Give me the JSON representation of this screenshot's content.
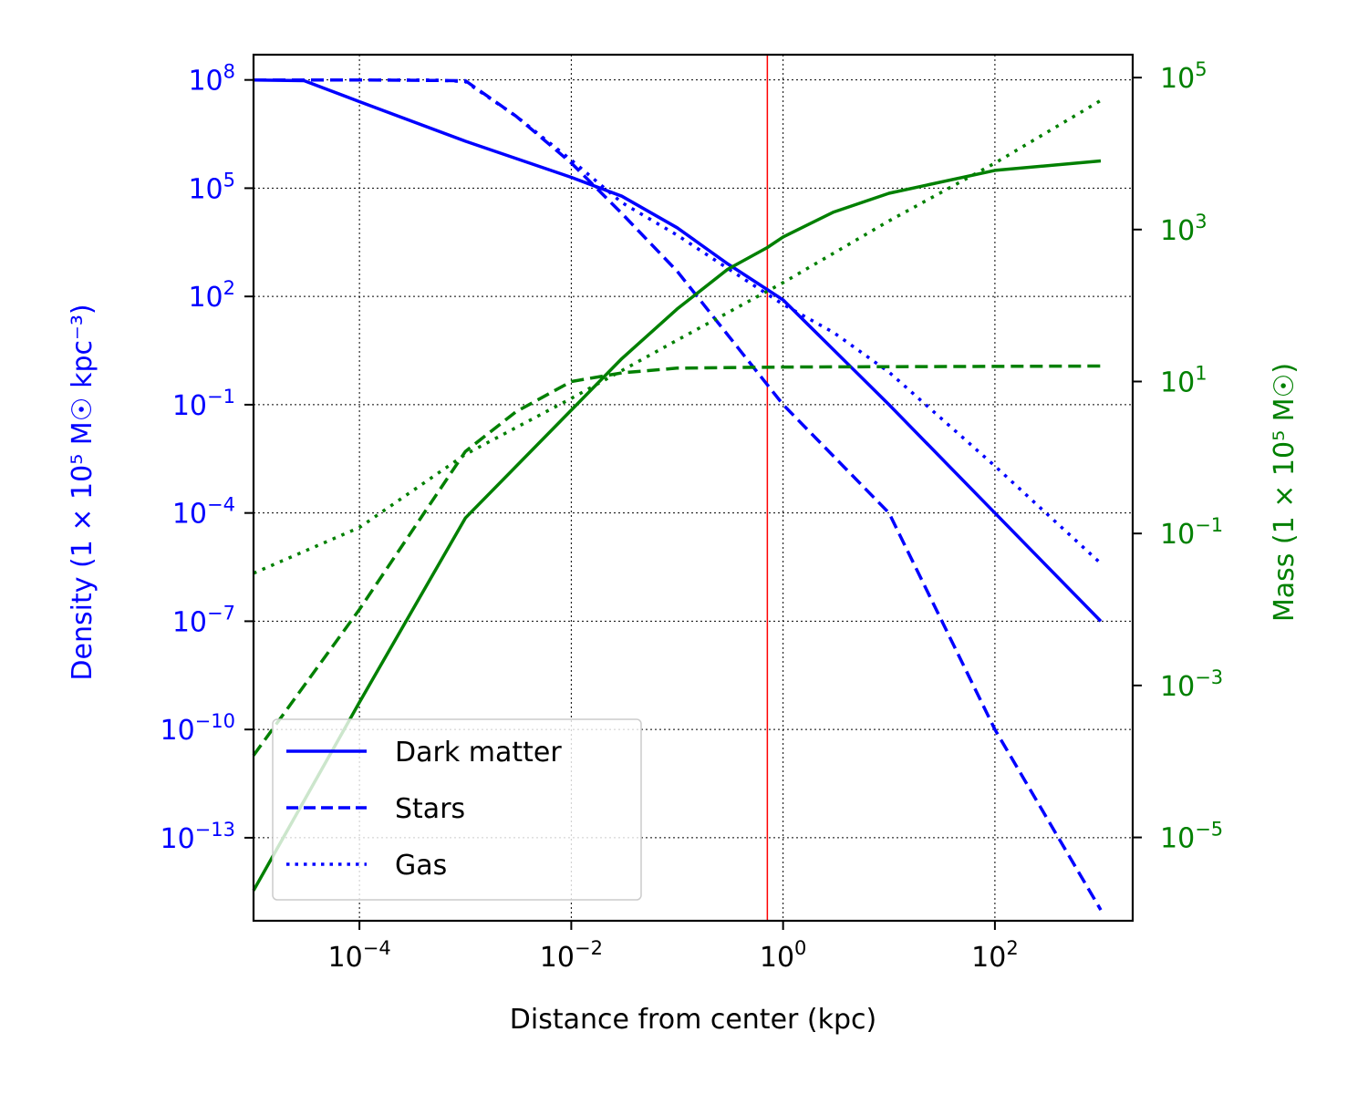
{
  "chart_data": {
    "type": "line",
    "xlabel": "Distance from center (kpc)",
    "ylabel_left": "Density (1 × 10⁵ M☉ kpc⁻³)",
    "ylabel_right": "Mass (1 × 10⁵ M☉)",
    "xscale": "log",
    "yscale_left": "log",
    "yscale_right": "log",
    "xlim": [
      1e-05,
      2000.0
    ],
    "ylim_left": [
      5e-16,
      500000000.0
    ],
    "ylim_right": [
      8e-07,
      200000.0
    ],
    "xticks": [
      {
        "value": 0.0001,
        "base": "10",
        "exp": "−4"
      },
      {
        "value": 0.01,
        "base": "10",
        "exp": "−2"
      },
      {
        "value": 1,
        "base": "10",
        "exp": "0"
      },
      {
        "value": 100,
        "base": "10",
        "exp": "2"
      }
    ],
    "yticks_left": [
      {
        "value": 100000000.0,
        "base": "10",
        "exp": "8"
      },
      {
        "value": 100000.0,
        "base": "10",
        "exp": "5"
      },
      {
        "value": 100.0,
        "base": "10",
        "exp": "2"
      },
      {
        "value": 0.1,
        "base": "10",
        "exp": "−1"
      },
      {
        "value": 0.0001,
        "base": "10",
        "exp": "−4"
      },
      {
        "value": 1e-07,
        "base": "10",
        "exp": "−7"
      },
      {
        "value": 1e-10,
        "base": "10",
        "exp": "−10"
      },
      {
        "value": 1e-13,
        "base": "10",
        "exp": "−13"
      }
    ],
    "yticks_right": [
      {
        "value": 100000.0,
        "base": "10",
        "exp": "5"
      },
      {
        "value": 1000.0,
        "base": "10",
        "exp": "3"
      },
      {
        "value": 10.0,
        "base": "10",
        "exp": "1"
      },
      {
        "value": 0.1,
        "base": "10",
        "exp": "−1"
      },
      {
        "value": 0.001,
        "base": "10",
        "exp": "−3"
      },
      {
        "value": 1e-05,
        "base": "10",
        "exp": "−5"
      }
    ],
    "grid": true,
    "vline": {
      "x": 0.71,
      "color": "#ff0000"
    },
    "legend": {
      "placement": "lower-left",
      "entries": [
        {
          "label": "Dark matter",
          "style": "solid"
        },
        {
          "label": "Stars",
          "style": "dashed"
        },
        {
          "label": "Gas",
          "style": "dotted"
        }
      ]
    },
    "series": [
      {
        "group": "density",
        "axis": "left",
        "style": "solid",
        "color": "#0000ff",
        "points": [
          [
            1e-05,
            100000000.0
          ],
          [
            3e-05,
            95000000.0
          ],
          [
            0.0001,
            25000000.0
          ],
          [
            0.001,
            2000000.0
          ],
          [
            0.01,
            200000.0
          ],
          [
            0.03,
            60000.0
          ],
          [
            0.1,
            8000.0
          ],
          [
            0.3,
            800
          ],
          [
            1,
            80
          ],
          [
            10,
            0.1
          ],
          [
            100,
            0.0001
          ],
          [
            1000,
            1e-07
          ]
        ]
      },
      {
        "group": "density",
        "axis": "left",
        "style": "dashed",
        "color": "#0000ff",
        "points": [
          [
            1e-05,
            100000000.0
          ],
          [
            0.0001,
            100000000.0
          ],
          [
            0.001,
            95000000.0
          ],
          [
            0.003,
            10000000.0
          ],
          [
            0.01,
            500000.0
          ],
          [
            0.03,
            20000.0
          ],
          [
            0.1,
            500
          ],
          [
            1,
            0.1
          ],
          [
            10,
            0.0001
          ],
          [
            100,
            1e-10
          ],
          [
            1000,
            1e-15
          ]
        ]
      },
      {
        "group": "density",
        "axis": "left",
        "style": "dotted",
        "color": "#0000ff",
        "points": [
          [
            1e-05,
            100000000.0
          ],
          [
            0.0005,
            100000000.0
          ],
          [
            0.001,
            90000000.0
          ],
          [
            0.003,
            10000000.0
          ],
          [
            0.01,
            600000.0
          ],
          [
            0.03,
            40000.0
          ],
          [
            0.1,
            5000.0
          ],
          [
            0.3,
            600
          ],
          [
            1,
            60
          ],
          [
            3,
            10
          ],
          [
            10,
            0.8
          ],
          [
            100,
            0.002
          ],
          [
            1000,
            4e-06
          ]
        ]
      },
      {
        "group": "mass",
        "axis": "right",
        "style": "solid",
        "color": "#008000",
        "points": [
          [
            1e-05,
            2e-06
          ],
          [
            0.0001,
            0.0006
          ],
          [
            0.001,
            0.16
          ],
          [
            0.01,
            4.2
          ],
          [
            0.03,
            20
          ],
          [
            0.1,
            90
          ],
          [
            0.3,
            300
          ],
          [
            0.71,
            580
          ],
          [
            1,
            800
          ],
          [
            3,
            1700
          ],
          [
            10,
            3000
          ],
          [
            100,
            6000
          ],
          [
            1000,
            8000
          ]
        ]
      },
      {
        "group": "mass",
        "axis": "right",
        "style": "dashed",
        "color": "#008000",
        "points": [
          [
            1e-05,
            0.00012
          ],
          [
            0.0001,
            0.01
          ],
          [
            0.001,
            1.2
          ],
          [
            0.003,
            4
          ],
          [
            0.01,
            10
          ],
          [
            0.03,
            13
          ],
          [
            0.1,
            15
          ],
          [
            1,
            15.5
          ],
          [
            1000,
            16
          ]
        ]
      },
      {
        "group": "mass",
        "axis": "right",
        "style": "dotted",
        "color": "#008000",
        "points": [
          [
            1e-05,
            0.03
          ],
          [
            0.0001,
            0.12
          ],
          [
            0.001,
            1.1
          ],
          [
            0.01,
            6
          ],
          [
            0.1,
            35
          ],
          [
            1,
            200
          ],
          [
            10,
            1300
          ],
          [
            100,
            7500
          ],
          [
            1000,
            50000.0
          ]
        ]
      }
    ],
    "colors": {
      "left_axis": "#0000ff",
      "right_axis": "#008000",
      "vline": "#ff0000"
    }
  }
}
